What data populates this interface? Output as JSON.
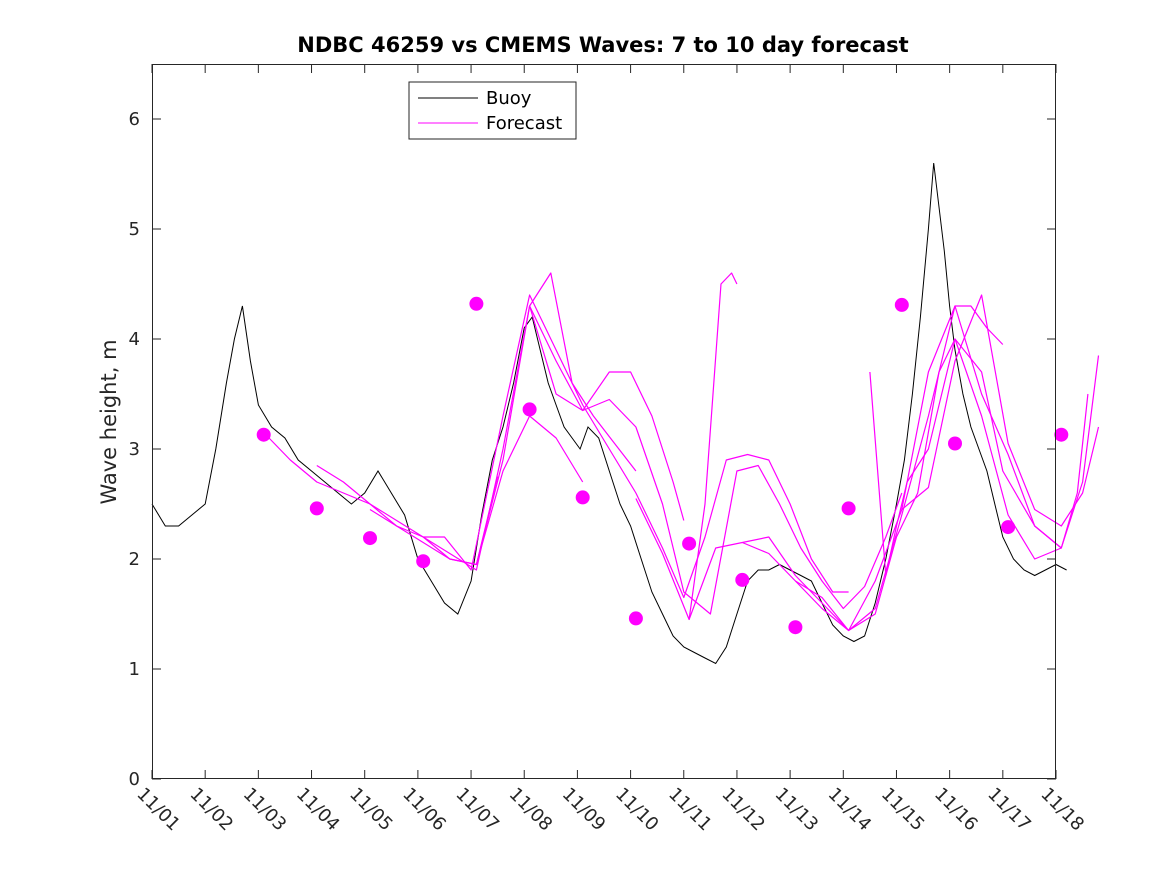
{
  "chart_data": {
    "type": "line",
    "title": "NDBC 46259 vs CMEMS Waves: 7 to 10 day forecast",
    "xlabel": "",
    "ylabel": "Wave height, m",
    "xlim": [
      0,
      17
    ],
    "ylim": [
      0,
      6.5
    ],
    "x_ticks": [
      0,
      1,
      2,
      3,
      4,
      5,
      6,
      7,
      8,
      9,
      10,
      11,
      12,
      13,
      14,
      15,
      16,
      17
    ],
    "x_tick_labels": [
      "11/01",
      "11/02",
      "11/03",
      "11/04",
      "11/05",
      "11/06",
      "11/07",
      "11/08",
      "11/09",
      "11/10",
      "11/11",
      "11/12",
      "11/13",
      "11/14",
      "11/15",
      "11/16",
      "11/17",
      "11/18"
    ],
    "y_ticks": [
      0,
      1,
      2,
      3,
      4,
      5,
      6
    ],
    "y_tick_labels": [
      "0",
      "1",
      "2",
      "3",
      "4",
      "5",
      "6"
    ],
    "grid": false,
    "legend": {
      "location": "top-center",
      "entries": [
        {
          "label": "Buoy",
          "color": "#000000"
        },
        {
          "label": "Forecast",
          "color": "#ff00ff"
        }
      ]
    },
    "series": [
      {
        "name": "Buoy",
        "color": "#000000",
        "x": [
          0.0,
          0.25,
          0.5,
          0.75,
          1.0,
          1.2,
          1.4,
          1.55,
          1.7,
          1.85,
          2.0,
          2.25,
          2.5,
          2.75,
          3.0,
          3.25,
          3.5,
          3.75,
          4.0,
          4.25,
          4.5,
          4.75,
          5.0,
          5.25,
          5.5,
          5.75,
          6.0,
          6.2,
          6.4,
          6.6,
          6.8,
          7.0,
          7.15,
          7.3,
          7.45,
          7.6,
          7.75,
          7.9,
          8.05,
          8.2,
          8.4,
          8.6,
          8.8,
          9.0,
          9.2,
          9.4,
          9.6,
          9.8,
          10.0,
          10.2,
          10.4,
          10.6,
          10.8,
          11.0,
          11.2,
          11.4,
          11.6,
          11.8,
          12.0,
          12.2,
          12.4,
          12.6,
          12.8,
          13.0,
          13.2,
          13.4,
          13.6,
          13.8,
          14.0,
          14.15,
          14.3,
          14.45,
          14.6,
          14.7,
          14.8,
          14.9,
          15.0,
          15.1,
          15.25,
          15.4,
          15.55,
          15.7,
          15.85,
          16.0,
          16.2,
          16.4,
          16.6,
          16.8,
          17.0,
          17.2
        ],
        "y": [
          2.5,
          2.3,
          2.3,
          2.4,
          2.5,
          3.0,
          3.6,
          4.0,
          4.3,
          3.8,
          3.4,
          3.2,
          3.1,
          2.9,
          2.8,
          2.7,
          2.6,
          2.5,
          2.6,
          2.8,
          2.6,
          2.4,
          2.0,
          1.8,
          1.6,
          1.5,
          1.8,
          2.4,
          2.9,
          3.2,
          3.6,
          4.1,
          4.2,
          3.9,
          3.6,
          3.4,
          3.2,
          3.1,
          3.0,
          3.2,
          3.1,
          2.8,
          2.5,
          2.3,
          2.0,
          1.7,
          1.5,
          1.3,
          1.2,
          1.15,
          1.1,
          1.05,
          1.2,
          1.5,
          1.8,
          1.9,
          1.9,
          1.95,
          1.9,
          1.85,
          1.8,
          1.6,
          1.4,
          1.3,
          1.25,
          1.3,
          1.6,
          2.0,
          2.5,
          2.9,
          3.5,
          4.2,
          5.0,
          5.6,
          5.2,
          4.8,
          4.3,
          3.9,
          3.5,
          3.2,
          3.0,
          2.8,
          2.5,
          2.2,
          2.0,
          1.9,
          1.85,
          1.9,
          1.95,
          1.9
        ]
      },
      {
        "name": "Forecast",
        "color": "#ff00ff",
        "segments": [
          {
            "x": [
              2.1,
              2.6,
              3.1,
              3.6,
              4.1,
              4.6,
              5.1,
              5.6,
              6.1,
              6.5
            ],
            "y": [
              3.15,
              2.9,
              2.7,
              2.6,
              2.5,
              2.3,
              2.15,
              2.0,
              1.95,
              2.75
            ]
          },
          {
            "x": [
              3.1,
              3.6,
              4.1,
              4.6,
              5.1,
              5.6,
              6.1,
              6.6,
              7.1,
              7.6,
              8.1
            ],
            "y": [
              2.85,
              2.7,
              2.5,
              2.35,
              2.2,
              2.0,
              1.95,
              2.8,
              3.3,
              3.1,
              2.7
            ]
          },
          {
            "x": [
              4.1,
              4.6,
              5.1,
              5.6,
              6.1,
              6.6,
              7.1,
              7.5,
              7.9,
              8.3,
              8.7,
              9.1
            ],
            "y": [
              2.45,
              2.3,
              2.2,
              2.05,
              1.9,
              3.0,
              4.3,
              4.6,
              3.6,
              3.3,
              3.05,
              2.8
            ]
          },
          {
            "x": [
              5.1,
              5.5,
              6.0,
              6.6,
              7.1,
              7.6,
              8.1,
              8.6,
              9.1,
              9.6,
              10.0,
              10.4,
              10.8,
              11.2,
              11.6,
              12.0,
              12.4,
              12.8,
              13.1
            ],
            "y": [
              2.2,
              2.2,
              1.9,
              3.3,
              4.4,
              3.9,
              3.4,
              3.0,
              2.6,
              2.1,
              1.65,
              2.2,
              2.9,
              2.95,
              2.9,
              2.5,
              2.0,
              1.7,
              1.7
            ]
          },
          {
            "x": [
              6.1,
              6.6,
              7.1,
              7.6,
              8.1,
              8.6,
              9.1,
              9.6,
              10.0,
              10.5,
              11.0,
              11.4,
              11.8,
              12.2,
              12.6,
              13.0,
              13.4,
              13.8,
              14.1
            ],
            "y": [
              1.95,
              2.9,
              4.3,
              3.8,
              3.35,
              3.45,
              3.2,
              2.5,
              1.7,
              1.5,
              2.8,
              2.85,
              2.5,
              2.1,
              1.8,
              1.55,
              1.75,
              2.2,
              2.6
            ]
          },
          {
            "x": [
              7.1,
              7.6,
              8.1,
              8.6,
              9.0,
              9.4,
              9.8,
              10.0
            ],
            "y": [
              4.3,
              3.5,
              3.35,
              3.7,
              3.7,
              3.3,
              2.7,
              2.35
            ]
          },
          {
            "x": [
              9.1,
              9.6,
              10.1,
              10.4,
              10.7,
              10.9,
              11.0
            ],
            "y": [
              2.55,
              2.05,
              1.45,
              2.5,
              4.5,
              4.6,
              4.5
            ]
          },
          {
            "x": [
              10.1,
              10.6,
              11.1,
              11.6,
              12.1,
              12.6,
              13.1,
              13.6,
              14.1,
              14.6,
              15.1,
              15.4,
              15.7,
              16.0
            ],
            "y": [
              1.45,
              2.1,
              2.15,
              2.2,
              1.85,
              1.6,
              1.35,
              1.8,
              2.45,
              3.7,
              4.3,
              4.3,
              4.1,
              3.95
            ]
          },
          {
            "x": [
              11.1,
              11.6,
              12.1,
              12.6,
              13.1,
              13.6,
              14.0,
              14.4,
              14.8,
              15.1,
              15.6,
              16.1,
              16.6,
              17.1,
              17.4,
              17.6
            ],
            "y": [
              2.15,
              2.05,
              1.8,
              1.65,
              1.35,
              1.5,
              2.2,
              2.6,
              3.7,
              4.0,
              3.3,
              2.4,
              2.0,
              2.1,
              2.6,
              3.5
            ]
          },
          {
            "x": [
              12.1,
              12.6,
              13.1,
              13.6,
              14.1,
              14.6,
              15.1,
              15.6,
              16.1,
              16.6,
              17.1,
              17.5,
              17.8
            ],
            "y": [
              1.8,
              1.55,
              1.35,
              1.55,
              2.4,
              3.3,
              4.3,
              3.5,
              2.95,
              2.3,
              2.1,
              2.7,
              3.85
            ]
          },
          {
            "x": [
              14.1,
              14.6,
              15.1,
              15.6,
              16.1,
              16.6,
              17.1,
              17.5,
              17.8
            ],
            "y": [
              2.45,
              2.65,
              3.8,
              4.4,
              3.05,
              2.45,
              2.3,
              2.6,
              3.2
            ]
          },
          {
            "x": [
              13.5,
              13.8,
              14.0,
              14.2,
              14.6,
              15.1,
              15.6,
              16.0,
              16.6,
              17.1
            ],
            "y": [
              3.7,
              1.85,
              2.3,
              2.7,
              3.0,
              4.0,
              3.7,
              2.8,
              2.3,
              2.1
            ]
          }
        ],
        "markers": {
          "x": [
            2.1,
            3.1,
            4.1,
            5.1,
            6.1,
            7.1,
            8.1,
            9.1,
            10.1,
            11.1,
            12.1,
            13.1,
            14.1,
            15.1,
            16.1,
            17.1
          ],
          "y": [
            3.13,
            2.46,
            2.19,
            1.98,
            4.32,
            3.36,
            2.56,
            1.46,
            2.14,
            1.81,
            1.38,
            2.46,
            4.31,
            3.05,
            2.29,
            3.13
          ]
        }
      }
    ]
  }
}
